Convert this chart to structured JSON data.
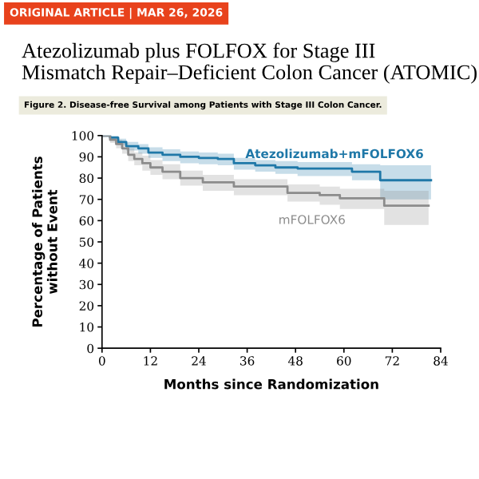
{
  "chart_data": {
    "type": "step",
    "title": "Atezolizumab plus FOLFOX for Stage III\nMismatch Repair–Deficient Colon Cancer (ATOMIC)",
    "subtitle": "Figure 2. Disease-free Survival among Patients with Stage III Colon Cancer.",
    "annotations": [
      "ORIGINAL ARTICLE | MAR 26, 2026"
    ],
    "xlabel": "Months since Randomization",
    "ylabel": "Percentage of Patients\nwithout Event",
    "xlim": [
      0,
      84
    ],
    "xticks": [
      0,
      12,
      24,
      36,
      48,
      60,
      72,
      84
    ],
    "ylim": [
      0,
      100
    ],
    "yticks": [
      0,
      10,
      20,
      30,
      40,
      50,
      60,
      70,
      80,
      90,
      100
    ],
    "grid": false,
    "legend": false,
    "series": [
      {
        "name": "Atezolizumab+mFOLFOX6",
        "color": "#1f78a8",
        "x": [
          0,
          2,
          4,
          6,
          9,
          11.5,
          15,
          19.4,
          24,
          28.7,
          32.7,
          38,
          43,
          48.5,
          62,
          69,
          81.6
        ],
        "values": [
          100,
          99,
          97,
          95,
          94,
          92,
          91,
          90,
          89.5,
          89,
          87,
          86,
          85,
          84.5,
          83,
          79,
          79
        ],
        "lower": [
          100,
          98,
          95.5,
          93,
          91.5,
          89.5,
          88,
          87,
          86.5,
          86,
          84,
          83,
          82,
          81,
          79,
          70,
          70
        ],
        "upper": [
          100,
          100,
          98.5,
          97,
          96,
          94.5,
          93.5,
          92.5,
          92,
          91.5,
          89.5,
          88.5,
          88,
          87.5,
          86.5,
          86,
          86
        ]
      },
      {
        "name": "mFOLFOX6",
        "color": "#8c8c8c",
        "x": [
          0,
          2,
          3.5,
          5,
          6.5,
          8,
          10,
          12,
          15,
          19.4,
          25,
          32.7,
          46,
          54,
          59,
          70,
          81
        ],
        "values": [
          100,
          98,
          96,
          94,
          91,
          89,
          87,
          85,
          83,
          80,
          78,
          76,
          73,
          72,
          70.5,
          67,
          67
        ],
        "lower": [
          100,
          96.5,
          94,
          91.5,
          88,
          86,
          83.5,
          81.5,
          79.5,
          76.5,
          74,
          72,
          69,
          67.5,
          65.5,
          58,
          58
        ],
        "upper": [
          100,
          99.5,
          98,
          96.5,
          94,
          92,
          90.5,
          88.5,
          86.5,
          83.5,
          81.5,
          79.5,
          77,
          76,
          75,
          74,
          74
        ]
      }
    ]
  }
}
